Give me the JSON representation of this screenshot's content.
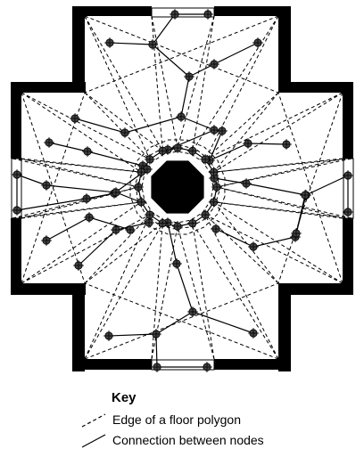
{
  "key": {
    "title": "Key",
    "items": [
      {
        "label": "Edge of a floor polygon",
        "line": "dashed"
      },
      {
        "label": "Connection between nodes",
        "line": "solid"
      }
    ]
  }
}
